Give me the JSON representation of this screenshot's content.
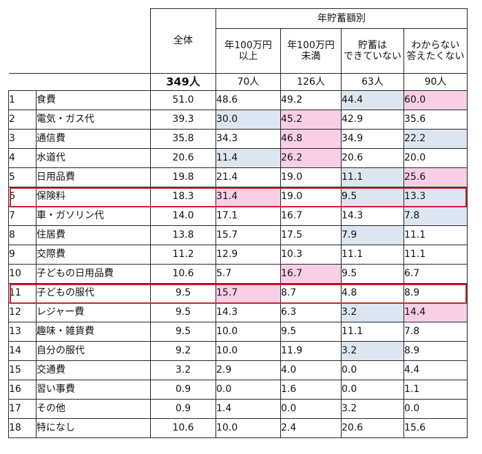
{
  "chart_data": {
    "type": "table",
    "header": {
      "group_label": "年貯蓄額別",
      "total_label": "全体",
      "columns": [
        {
          "line1": "年100万円",
          "line2": "以上"
        },
        {
          "line1": "年100万円",
          "line2": "未満"
        },
        {
          "line1": "貯蓄は",
          "line2": "できていない"
        },
        {
          "line1": "わからない",
          "line2": "答えたくない"
        }
      ],
      "total_count": "349人",
      "counts": [
        "70人",
        "126人",
        "63人",
        "90人"
      ]
    },
    "highlight_colors": {
      "high": "#f9cfe6",
      "low": "#dde6f0",
      "frame": "#cc2027"
    },
    "rows": [
      {
        "rank": "1",
        "item": "食費",
        "total": "51.0",
        "values": [
          "48.6",
          "49.2",
          "44.4",
          "60.0"
        ],
        "shade": [
          "",
          "",
          "lo",
          "hi"
        ]
      },
      {
        "rank": "2",
        "item": "電気・ガス代",
        "total": "39.3",
        "values": [
          "30.0",
          "45.2",
          "42.9",
          "35.6"
        ],
        "shade": [
          "lo",
          "hi",
          "",
          ""
        ]
      },
      {
        "rank": "3",
        "item": "通信費",
        "total": "35.8",
        "values": [
          "34.3",
          "46.8",
          "34.9",
          "22.2"
        ],
        "shade": [
          "",
          "hi",
          "",
          "lo"
        ]
      },
      {
        "rank": "4",
        "item": "水道代",
        "total": "20.6",
        "values": [
          "11.4",
          "26.2",
          "20.6",
          "20.0"
        ],
        "shade": [
          "lo",
          "hi",
          "",
          ""
        ]
      },
      {
        "rank": "5",
        "item": "日用品費",
        "total": "19.8",
        "values": [
          "21.4",
          "19.0",
          "11.1",
          "25.6"
        ],
        "shade": [
          "",
          "",
          "lo",
          "hi"
        ]
      },
      {
        "rank": "6",
        "item": "保険料",
        "total": "18.3",
        "values": [
          "31.4",
          "19.0",
          "9.5",
          "13.3"
        ],
        "shade": [
          "hi",
          "",
          "lo",
          "lo"
        ],
        "framed": true
      },
      {
        "rank": "7",
        "item": "車・ガソリン代",
        "total": "14.0",
        "values": [
          "17.1",
          "16.7",
          "14.3",
          "7.8"
        ],
        "shade": [
          "",
          "",
          "",
          "lo"
        ]
      },
      {
        "rank": "8",
        "item": "住居費",
        "total": "13.8",
        "values": [
          "15.7",
          "17.5",
          "7.9",
          "11.1"
        ],
        "shade": [
          "",
          "",
          "lo",
          ""
        ]
      },
      {
        "rank": "9",
        "item": "交際費",
        "total": "11.2",
        "values": [
          "12.9",
          "10.3",
          "11.1",
          "11.1"
        ],
        "shade": [
          "",
          "",
          "",
          ""
        ]
      },
      {
        "rank": "10",
        "item": "子どもの日用品費",
        "total": "10.6",
        "values": [
          "5.7",
          "16.7",
          "9.5",
          "6.7"
        ],
        "shade": [
          "",
          "hi",
          "",
          ""
        ]
      },
      {
        "rank": "11",
        "item": "子どもの服代",
        "total": "9.5",
        "values": [
          "15.7",
          "8.7",
          "4.8",
          "8.9"
        ],
        "shade": [
          "hi",
          "",
          "",
          ""
        ],
        "framed": true
      },
      {
        "rank": "12",
        "item": "レジャー費",
        "total": "9.5",
        "values": [
          "14.3",
          "6.3",
          "3.2",
          "14.4"
        ],
        "shade": [
          "",
          "",
          "lo",
          "hi"
        ]
      },
      {
        "rank": "13",
        "item": "趣味・雑貨費",
        "total": "9.5",
        "values": [
          "10.0",
          "9.5",
          "11.1",
          "7.8"
        ],
        "shade": [
          "",
          "",
          "",
          ""
        ]
      },
      {
        "rank": "14",
        "item": "自分の服代",
        "total": "9.2",
        "values": [
          "10.0",
          "11.9",
          "3.2",
          "8.9"
        ],
        "shade": [
          "",
          "",
          "lo",
          ""
        ]
      },
      {
        "rank": "15",
        "item": "交通費",
        "total": "3.2",
        "values": [
          "2.9",
          "4.0",
          "0.0",
          "4.4"
        ],
        "shade": [
          "",
          "",
          "",
          ""
        ]
      },
      {
        "rank": "16",
        "item": "習い事費",
        "total": "0.9",
        "values": [
          "0.0",
          "1.6",
          "0.0",
          "1.1"
        ],
        "shade": [
          "",
          "",
          "",
          ""
        ]
      },
      {
        "rank": "17",
        "item": "その他",
        "total": "0.9",
        "values": [
          "1.4",
          "0.0",
          "3.2",
          "0.0"
        ],
        "shade": [
          "",
          "",
          "",
          ""
        ]
      },
      {
        "rank": "18",
        "item": "特になし",
        "total": "10.6",
        "values": [
          "10.0",
          "2.4",
          "20.6",
          "15.6"
        ],
        "shade": [
          "",
          "",
          "",
          ""
        ]
      }
    ]
  }
}
